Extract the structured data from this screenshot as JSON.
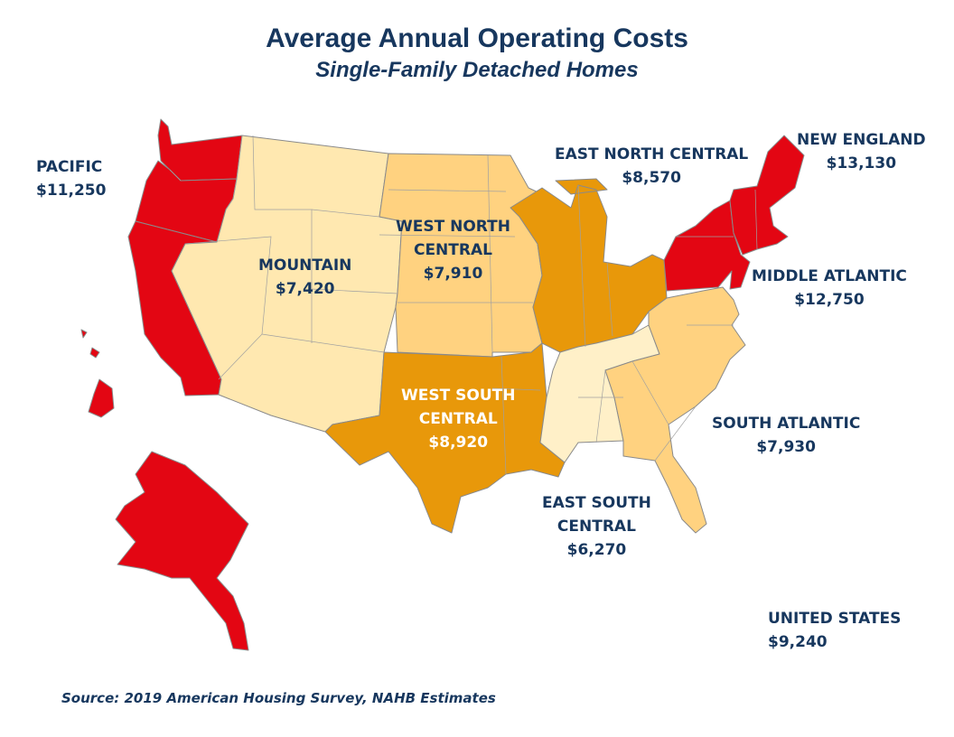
{
  "title": "Average Annual Operating Costs",
  "subtitle": "Single-Family Detached Homes",
  "regions": {
    "pacific": {
      "name": "PACIFIC",
      "value": "$11,250",
      "color": "#e30613"
    },
    "mountain": {
      "name": "MOUNTAIN",
      "value": "$7,420",
      "color": "#ffe8b0"
    },
    "west_north_central": {
      "name_line1": "WEST NORTH",
      "name_line2": "CENTRAL",
      "value": "$7,910",
      "color": "#ffd280"
    },
    "west_south_central": {
      "name_line1": "WEST SOUTH",
      "name_line2": "CENTRAL",
      "value": "$8,920",
      "color": "#e8980a"
    },
    "east_north_central": {
      "name": "EAST NORTH CENTRAL",
      "value": "$8,570",
      "color": "#e8980a"
    },
    "east_south_central": {
      "name_line1": "EAST SOUTH",
      "name_line2": "CENTRAL",
      "value": "$6,270",
      "color": "#fff0c8"
    },
    "new_england": {
      "name": "NEW ENGLAND",
      "value": "$13,130",
      "color": "#e30613"
    },
    "middle_atlantic": {
      "name": "MIDDLE ATLANTIC",
      "value": "$12,750",
      "color": "#e30613"
    },
    "south_atlantic": {
      "name": "SOUTH ATLANTIC",
      "value": "$7,930",
      "color": "#ffd280"
    }
  },
  "united_states": {
    "name": "UNITED STATES",
    "value": "$9,240"
  },
  "source": "Source: 2019 American Housing Survey, NAHB Estimates"
}
